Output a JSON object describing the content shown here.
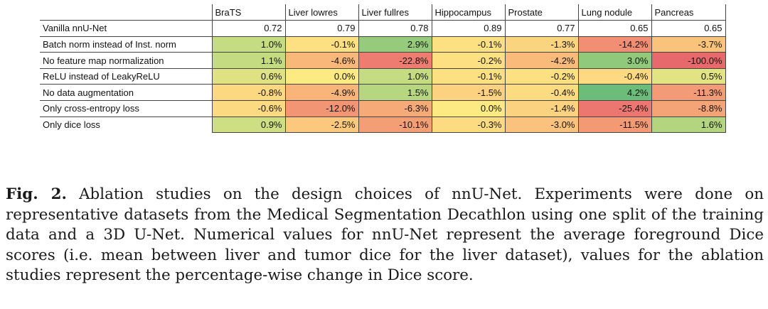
{
  "table": {
    "columns": [
      "BraTS",
      "Liver lowres",
      "Liver fullres",
      "Hippocampus",
      "Prostate",
      "Lung nodule",
      "Pancreas"
    ],
    "rows": [
      {
        "label": "Vanilla nnU-Net",
        "values": [
          "0.72",
          "0.79",
          "0.78",
          "0.89",
          "0.77",
          "0.65",
          "0.65"
        ],
        "colors": [
          "#ffffff",
          "#ffffff",
          "#ffffff",
          "#ffffff",
          "#ffffff",
          "#ffffff",
          "#ffffff"
        ]
      },
      {
        "label": "Batch norm instead of Inst. norm",
        "values": [
          "1.0%",
          "-0.1%",
          "2.9%",
          "-0.1%",
          "-1.3%",
          "-14.2%",
          "-3.7%"
        ],
        "colors": [
          "#c6dc82",
          "#fde082",
          "#97cb7c",
          "#fde082",
          "#fbd47f",
          "#f28e74",
          "#f9c37c"
        ]
      },
      {
        "label": "No feature map normalization",
        "values": [
          "1.1%",
          "-4.6%",
          "-22.8%",
          "-0.2%",
          "-4.2%",
          "3.0%",
          "-100.0%"
        ],
        "colors": [
          "#c4db82",
          "#f9b87a",
          "#ee7c71",
          "#fde082",
          "#f9ba7a",
          "#90c97c",
          "#e8696b"
        ]
      },
      {
        "label": "ReLU instead of LeakyReLU",
        "values": [
          "0.6%",
          "0.0%",
          "1.0%",
          "-0.1%",
          "-0.2%",
          "-0.4%",
          "0.5%"
        ],
        "colors": [
          "#dfe282",
          "#feea83",
          "#c6dc82",
          "#fde082",
          "#fde082",
          "#fdda81",
          "#e2e383"
        ]
      },
      {
        "label": "No data augmentation",
        "values": [
          "-0.8%",
          "-4.9%",
          "1.5%",
          "-1.5%",
          "-0.4%",
          "4.2%",
          "-11.3%"
        ],
        "colors": [
          "#fcd880",
          "#f8b479",
          "#b6d680",
          "#fcd17f",
          "#fddc81",
          "#6cbd79",
          "#f39b76"
        ]
      },
      {
        "label": "Only cross-entropy loss",
        "values": [
          "-0.6%",
          "-12.0%",
          "-6.3%",
          "0.0%",
          "-1.4%",
          "-25.4%",
          "-8.8%"
        ],
        "colors": [
          "#fcda81",
          "#f29574",
          "#f6aa78",
          "#feea83",
          "#fbd27f",
          "#ec7670",
          "#f5a477"
        ]
      },
      {
        "label": "Only dice loss",
        "values": [
          "0.9%",
          "-2.5%",
          "-10.1%",
          "-0.3%",
          "-3.0%",
          "-11.5%",
          "1.6%"
        ],
        "colors": [
          "#cddf82",
          "#fbc87d",
          "#f49e76",
          "#fddc81",
          "#fac27c",
          "#f39a75",
          "#b3d580"
        ]
      }
    ]
  },
  "caption": {
    "label": "Fig. 2.",
    "text": "Ablation studies on the design choices of nnU-Net. Experiments were done on representative datasets from the Medical Segmentation Decathlon using one split of the training data and a 3D U-Net. Numerical values for nnU-Net represent the average foreground Dice scores (i.e. mean between liver and tumor dice for the liver dataset), values for the ablation studies represent the percentage-wise change in Dice score."
  }
}
